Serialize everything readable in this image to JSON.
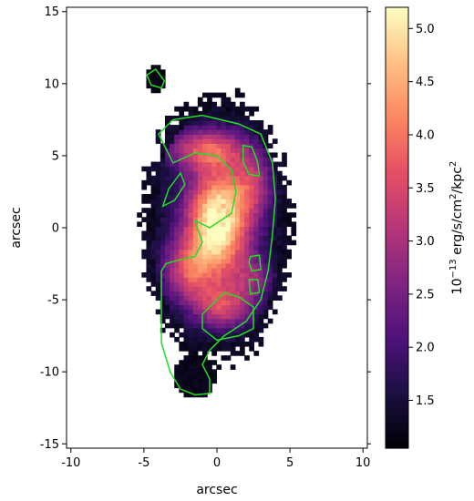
{
  "chart_data": {
    "type": "heatmap",
    "title": "",
    "xlabel": "arcsec",
    "ylabel": "arcsec",
    "xlim": [
      -10.3,
      10.3
    ],
    "ylim": [
      -15.3,
      15.3
    ],
    "x_ticks": [
      -10,
      -5,
      0,
      5,
      10
    ],
    "y_ticks": [
      -15,
      -10,
      -5,
      0,
      5,
      10,
      15
    ],
    "x_tick_labels": [
      "-10",
      "-5",
      "0",
      "5",
      "10"
    ],
    "y_tick_labels": [
      "-15",
      "-10",
      "-5",
      "0",
      "5",
      "10",
      "15"
    ],
    "colormap": "magma",
    "colorbar": {
      "label_prefix": "10",
      "label_exp1": "−13",
      "label_mid": " erg/s/cm",
      "label_exp2": "2",
      "label_mid2": "/kpc",
      "label_exp3": "2",
      "range": [
        1.05,
        5.2
      ],
      "ticks": [
        1.5,
        2.0,
        2.5,
        3.0,
        3.5,
        4.0,
        4.5,
        5.0
      ],
      "tick_labels": [
        "1.5",
        "2.0",
        "2.5",
        "3.0",
        "3.5",
        "4.0",
        "4.5",
        "5.0"
      ]
    },
    "image_extent": {
      "x": [
        -6.6,
        6.6
      ],
      "y": [
        -11.9,
        11.5
      ]
    },
    "galaxy_model": {
      "center": [
        0.0,
        0.0
      ],
      "outer_semi_axes": [
        5.5,
        10.0
      ],
      "blobs": [
        {
          "x": 0.1,
          "y": 0.5,
          "sx": 1.5,
          "sy": 2.6,
          "amp": 3.6
        },
        {
          "x": -0.8,
          "y": 5.5,
          "sx": 2.0,
          "sy": 1.0,
          "amp": 2.0
        },
        {
          "x": 2.5,
          "y": 3.0,
          "sx": 1.0,
          "sy": 1.6,
          "amp": 1.4
        },
        {
          "x": -2.0,
          "y": -3.0,
          "sx": 1.3,
          "sy": 1.6,
          "amp": 1.8
        },
        {
          "x": 0.5,
          "y": -5.5,
          "sx": 1.4,
          "sy": 1.1,
          "amp": 1.8
        },
        {
          "x": 2.5,
          "y": -3.5,
          "sx": 1.0,
          "sy": 1.0,
          "amp": 1.1
        }
      ]
    },
    "contour_color": "#22dd22",
    "contours": [
      [
        [
          -4.0,
          6.5
        ],
        [
          -3.0,
          7.5
        ],
        [
          -1.0,
          7.8
        ],
        [
          1.5,
          7.2
        ],
        [
          3.0,
          6.5
        ],
        [
          3.8,
          4.5
        ],
        [
          4.0,
          2.0
        ],
        [
          3.8,
          -0.5
        ],
        [
          3.5,
          -3.0
        ],
        [
          3.0,
          -5.0
        ],
        [
          2.0,
          -6.5
        ],
        [
          0.5,
          -7.5
        ],
        [
          -0.5,
          -8.5
        ],
        [
          -1.0,
          -9.5
        ],
        [
          -0.5,
          -10.5
        ],
        [
          -0.5,
          -11.5
        ],
        [
          -1.5,
          -11.6
        ],
        [
          -2.5,
          -11.2
        ],
        [
          -3.2,
          -10.0
        ],
        [
          -3.8,
          -8.0
        ],
        [
          -3.8,
          -5.5
        ],
        [
          -3.8,
          -3.0
        ],
        [
          -3.5,
          -2.5
        ],
        [
          -2.5,
          -2.2
        ],
        [
          -1.5,
          -2.0
        ],
        [
          -1.0,
          -1.0
        ],
        [
          -1.5,
          0.5
        ],
        [
          -0.5,
          0.0
        ],
        [
          1.0,
          1.0
        ],
        [
          1.3,
          2.5
        ],
        [
          1.0,
          4.0
        ],
        [
          0.0,
          5.0
        ],
        [
          -1.5,
          5.2
        ],
        [
          -3.0,
          4.5
        ],
        [
          -3.5,
          5.5
        ],
        [
          -4.0,
          6.5
        ]
      ],
      [
        [
          0.5,
          -4.5
        ],
        [
          1.5,
          -4.8
        ],
        [
          2.5,
          -5.5
        ],
        [
          2.5,
          -7.0
        ],
        [
          1.5,
          -7.5
        ],
        [
          0.0,
          -7.8
        ],
        [
          -1.0,
          -7.0
        ],
        [
          -1.0,
          -6.0
        ],
        [
          0.0,
          -5.0
        ],
        [
          0.5,
          -4.5
        ]
      ],
      [
        [
          1.8,
          5.7
        ],
        [
          2.4,
          5.6
        ],
        [
          2.8,
          4.5
        ],
        [
          2.9,
          3.6
        ],
        [
          2.2,
          3.7
        ],
        [
          1.8,
          4.6
        ],
        [
          1.8,
          5.7
        ]
      ],
      [
        [
          -2.5,
          3.8
        ],
        [
          -2.2,
          3.0
        ],
        [
          -2.9,
          1.9
        ],
        [
          -3.7,
          1.5
        ],
        [
          -3.3,
          2.7
        ],
        [
          -2.5,
          3.8
        ]
      ],
      [
        [
          2.3,
          -2.0
        ],
        [
          2.9,
          -1.9
        ],
        [
          3.0,
          -2.9
        ],
        [
          2.4,
          -3.0
        ],
        [
          2.2,
          -2.4
        ],
        [
          2.3,
          -2.0
        ]
      ],
      [
        [
          2.2,
          -3.6
        ],
        [
          2.8,
          -3.6
        ],
        [
          2.9,
          -4.5
        ],
        [
          2.3,
          -4.6
        ],
        [
          2.2,
          -3.6
        ]
      ],
      [
        [
          -4.8,
          10.6
        ],
        [
          -4.2,
          11.0
        ],
        [
          -3.6,
          10.2
        ],
        [
          -3.8,
          9.7
        ],
        [
          -4.5,
          9.9
        ],
        [
          -4.8,
          10.6
        ]
      ]
    ]
  }
}
